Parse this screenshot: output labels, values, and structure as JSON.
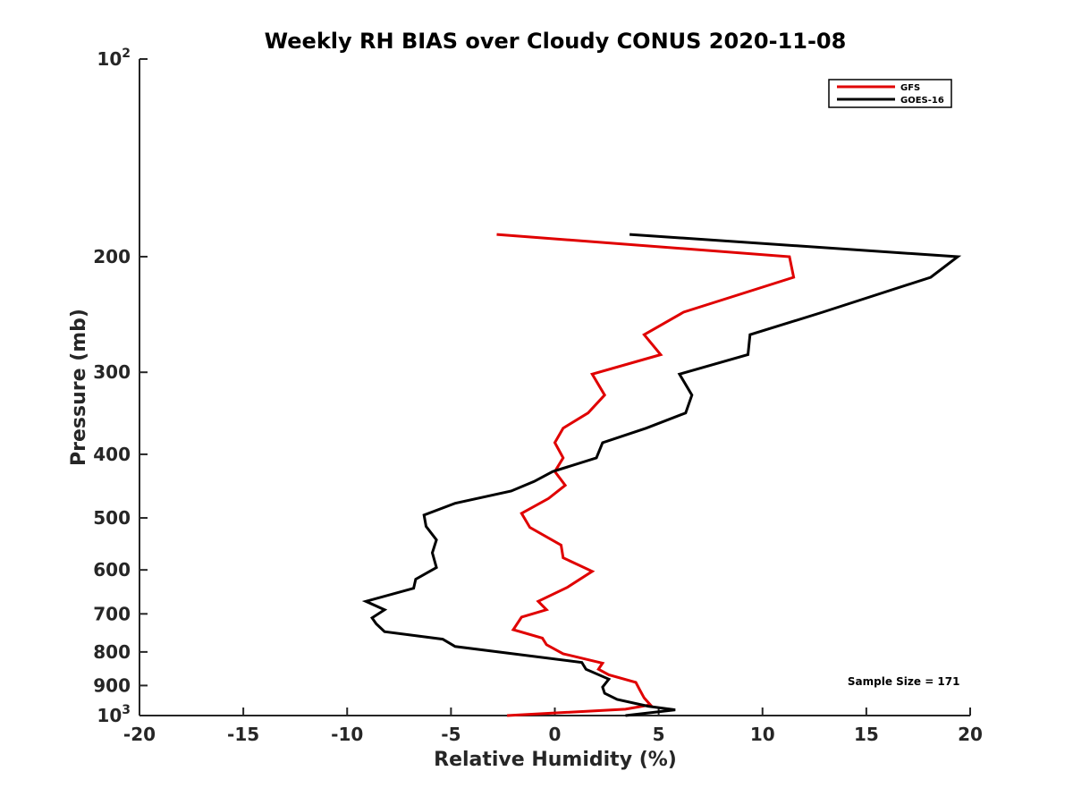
{
  "chart_data": {
    "type": "line",
    "title": "Weekly RH BIAS over Cloudy CONUS 2020-11-08",
    "xlabel": "Relative Humidity (%)",
    "ylabel": "Pressure (mb)",
    "xlim": [
      -20,
      20
    ],
    "ylim": [
      100,
      1000
    ],
    "y_scale": "log",
    "y_reversed": true,
    "grid": false,
    "legend_position": "top-right",
    "x_ticks": [
      -20,
      -15,
      -10,
      -5,
      0,
      5,
      10,
      15,
      20
    ],
    "x_tick_labels": [
      "-20",
      "-15",
      "-10",
      "-5",
      "0",
      "5",
      "10",
      "15",
      "20"
    ],
    "y_ticks": [
      100,
      200,
      300,
      400,
      500,
      600,
      700,
      800,
      900,
      1000
    ],
    "y_tick_labels": [
      {
        "base": "10",
        "exp": "2"
      },
      {
        "base": "200",
        "exp": ""
      },
      {
        "base": "300",
        "exp": ""
      },
      {
        "base": "400",
        "exp": ""
      },
      {
        "base": "500",
        "exp": ""
      },
      {
        "base": "600",
        "exp": ""
      },
      {
        "base": "700",
        "exp": ""
      },
      {
        "base": "800",
        "exp": ""
      },
      {
        "base": "900",
        "exp": ""
      },
      {
        "base": "10",
        "exp": "3"
      }
    ],
    "annotations": [
      {
        "text": "Sample Size = 171",
        "x": 16.8,
        "y": 910
      }
    ],
    "series": [
      {
        "name": "GFS",
        "color": "#e00000",
        "points": [
          [
            -2.8,
            185
          ],
          [
            11.3,
            200
          ],
          [
            11.5,
            215
          ],
          [
            6.2,
            243
          ],
          [
            4.3,
            263
          ],
          [
            5.1,
            282
          ],
          [
            1.8,
            302
          ],
          [
            2.4,
            325
          ],
          [
            1.6,
            346
          ],
          [
            0.4,
            365
          ],
          [
            0.0,
            384
          ],
          [
            0.4,
            405
          ],
          [
            0.0,
            425
          ],
          [
            0.5,
            446
          ],
          [
            -0.3,
            467
          ],
          [
            -1.6,
            492
          ],
          [
            -1.2,
            517
          ],
          [
            0.3,
            550
          ],
          [
            0.4,
            575
          ],
          [
            1.8,
            603
          ],
          [
            0.6,
            638
          ],
          [
            -0.8,
            670
          ],
          [
            -0.4,
            690
          ],
          [
            -1.6,
            708
          ],
          [
            -2.0,
            740
          ],
          [
            -0.6,
            762
          ],
          [
            -0.4,
            780
          ],
          [
            0.4,
            805
          ],
          [
            2.3,
            832
          ],
          [
            2.1,
            850
          ],
          [
            2.6,
            867
          ],
          [
            3.9,
            890
          ],
          [
            4.1,
            915
          ],
          [
            4.3,
            940
          ],
          [
            4.6,
            963
          ],
          [
            3.4,
            978
          ],
          [
            -2.3,
            1000
          ]
        ]
      },
      {
        "name": "GOES-16",
        "color": "#000000",
        "points": [
          [
            3.6,
            185
          ],
          [
            19.4,
            200
          ],
          [
            18.1,
            215
          ],
          [
            12.9,
            243
          ],
          [
            9.4,
            263
          ],
          [
            9.3,
            282
          ],
          [
            6.0,
            302
          ],
          [
            6.6,
            325
          ],
          [
            6.3,
            346
          ],
          [
            4.4,
            365
          ],
          [
            2.3,
            384
          ],
          [
            2.0,
            405
          ],
          [
            -0.1,
            425
          ],
          [
            -1.0,
            440
          ],
          [
            -2.1,
            455
          ],
          [
            -4.8,
            475
          ],
          [
            -6.3,
            495
          ],
          [
            -6.2,
            515
          ],
          [
            -5.7,
            540
          ],
          [
            -5.9,
            565
          ],
          [
            -5.7,
            595
          ],
          [
            -6.7,
            620
          ],
          [
            -6.8,
            640
          ],
          [
            -9.1,
            670
          ],
          [
            -8.2,
            690
          ],
          [
            -8.8,
            710
          ],
          [
            -8.6,
            725
          ],
          [
            -8.2,
            745
          ],
          [
            -5.4,
            765
          ],
          [
            -4.8,
            785
          ],
          [
            1.3,
            830
          ],
          [
            1.5,
            850
          ],
          [
            2.6,
            880
          ],
          [
            2.3,
            905
          ],
          [
            2.4,
            925
          ],
          [
            3.0,
            945
          ],
          [
            4.5,
            968
          ],
          [
            5.8,
            980
          ],
          [
            3.4,
            1000
          ]
        ]
      }
    ]
  }
}
